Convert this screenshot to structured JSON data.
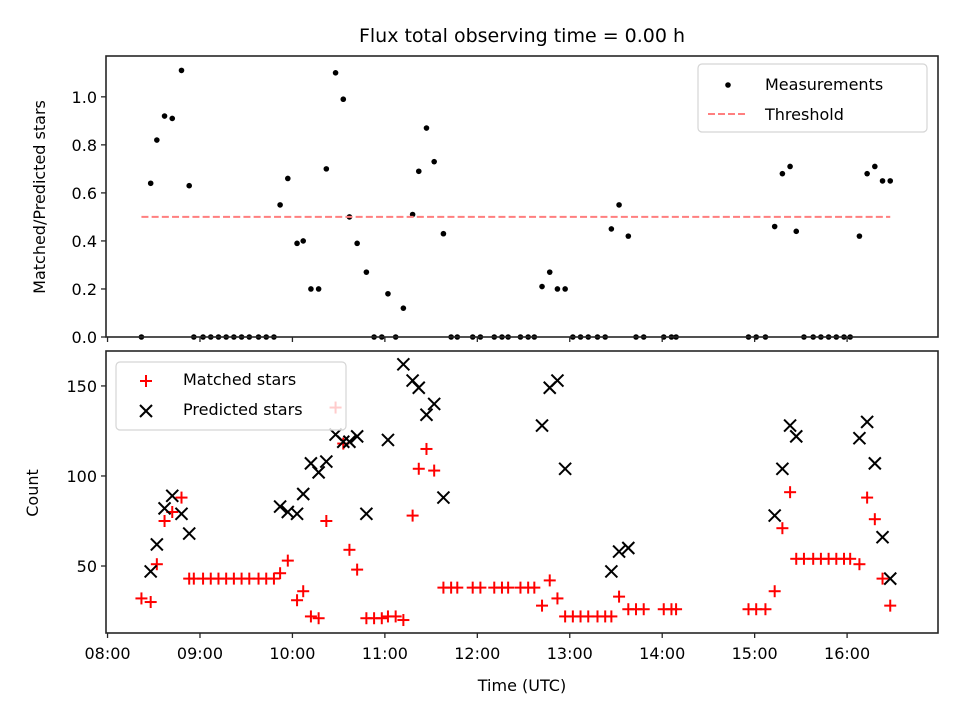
{
  "chart_data": [
    {
      "type": "scatter",
      "title": "Flux total observing time = 0.00 h",
      "xlabel": "",
      "ylabel": "Matched/Predicted stars",
      "xlim": [
        "07:59",
        "16:59"
      ],
      "ylim": [
        0.0,
        1.17
      ],
      "yticks": [
        0.0,
        0.2,
        0.4,
        0.6,
        0.8,
        1.0
      ],
      "ytick_labels": [
        "0.0",
        "0.2",
        "0.4",
        "0.6",
        "0.8",
        "1.0"
      ],
      "xticks": [
        "08:00",
        "09:00",
        "10:00",
        "11:00",
        "12:00",
        "13:00",
        "14:00",
        "15:00",
        "16:00"
      ],
      "grid": false,
      "legend": {
        "placement": "upper-right",
        "entries": [
          "Measurements",
          "Threshold"
        ]
      },
      "series": [
        {
          "name": "Measurements",
          "marker": "dot",
          "color": "#000000",
          "points": [
            [
              "08:22",
              0.0
            ],
            [
              "08:28",
              0.64
            ],
            [
              "08:32",
              0.82
            ],
            [
              "08:37",
              0.92
            ],
            [
              "08:42",
              0.91
            ],
            [
              "08:48",
              1.11
            ],
            [
              "08:53",
              0.63
            ],
            [
              "08:56",
              0.0
            ],
            [
              "09:02",
              0.0
            ],
            [
              "09:07",
              0.0
            ],
            [
              "09:12",
              0.0
            ],
            [
              "09:17",
              0.0
            ],
            [
              "09:22",
              0.0
            ],
            [
              "09:27",
              0.0
            ],
            [
              "09:32",
              0.0
            ],
            [
              "09:38",
              0.0
            ],
            [
              "09:43",
              0.0
            ],
            [
              "09:48",
              0.0
            ],
            [
              "09:52",
              0.55
            ],
            [
              "09:57",
              0.66
            ],
            [
              "10:03",
              0.39
            ],
            [
              "10:07",
              0.4
            ],
            [
              "10:12",
              0.2
            ],
            [
              "10:17",
              0.2
            ],
            [
              "10:22",
              0.7
            ],
            [
              "10:28",
              1.1
            ],
            [
              "10:33",
              0.99
            ],
            [
              "10:37",
              0.5
            ],
            [
              "10:42",
              0.39
            ],
            [
              "10:48",
              0.27
            ],
            [
              "10:53",
              0.0
            ],
            [
              "10:58",
              0.0
            ],
            [
              "11:02",
              0.18
            ],
            [
              "11:07",
              0.0
            ],
            [
              "11:12",
              0.12
            ],
            [
              "11:18",
              0.51
            ],
            [
              "11:22",
              0.69
            ],
            [
              "11:27",
              0.87
            ],
            [
              "11:32",
              0.73
            ],
            [
              "11:38",
              0.43
            ],
            [
              "11:43",
              0.0
            ],
            [
              "11:47",
              0.0
            ],
            [
              "11:57",
              0.0
            ],
            [
              "12:02",
              0.0
            ],
            [
              "12:11",
              0.0
            ],
            [
              "12:16",
              0.0
            ],
            [
              "12:20",
              0.0
            ],
            [
              "12:28",
              0.0
            ],
            [
              "12:33",
              0.0
            ],
            [
              "12:37",
              0.0
            ],
            [
              "12:42",
              0.21
            ],
            [
              "12:47",
              0.27
            ],
            [
              "12:52",
              0.2
            ],
            [
              "12:57",
              0.2
            ],
            [
              "13:02",
              0.0
            ],
            [
              "13:07",
              0.0
            ],
            [
              "13:12",
              0.0
            ],
            [
              "13:18",
              0.0
            ],
            [
              "13:23",
              0.0
            ],
            [
              "13:27",
              0.45
            ],
            [
              "13:32",
              0.55
            ],
            [
              "13:38",
              0.42
            ],
            [
              "13:43",
              0.0
            ],
            [
              "13:48",
              0.0
            ],
            [
              "14:01",
              0.0
            ],
            [
              "14:06",
              0.0
            ],
            [
              "14:09",
              0.0
            ],
            [
              "14:56",
              0.0
            ],
            [
              "15:01",
              0.0
            ],
            [
              "15:07",
              0.0
            ],
            [
              "15:13",
              0.46
            ],
            [
              "15:18",
              0.68
            ],
            [
              "15:23",
              0.71
            ],
            [
              "15:27",
              0.44
            ],
            [
              "15:32",
              0.0
            ],
            [
              "15:38",
              0.0
            ],
            [
              "15:43",
              0.0
            ],
            [
              "15:48",
              0.0
            ],
            [
              "15:53",
              0.0
            ],
            [
              "15:58",
              0.0
            ],
            [
              "16:02",
              0.0
            ],
            [
              "16:08",
              0.42
            ],
            [
              "16:13",
              0.68
            ],
            [
              "16:18",
              0.71
            ],
            [
              "16:23",
              0.65
            ],
            [
              "16:28",
              0.65
            ]
          ]
        },
        {
          "name": "Threshold",
          "marker": "dashed-line",
          "color": "#ff7f7f",
          "points": [
            [
              "08:22",
              0.5
            ],
            [
              "16:28",
              0.5
            ]
          ]
        }
      ]
    },
    {
      "type": "scatter",
      "title": "",
      "xlabel": "Time (UTC)",
      "ylabel": "Count",
      "xlim": [
        "07:59",
        "16:59"
      ],
      "ylim": [
        12.8,
        169.4
      ],
      "yticks": [
        50,
        100,
        150
      ],
      "ytick_labels": [
        "50",
        "100",
        "150"
      ],
      "xticks": [
        "08:00",
        "09:00",
        "10:00",
        "11:00",
        "12:00",
        "13:00",
        "14:00",
        "15:00",
        "16:00"
      ],
      "xtick_labels": [
        "08:00",
        "09:00",
        "10:00",
        "11:00",
        "12:00",
        "13:00",
        "14:00",
        "15:00",
        "16:00"
      ],
      "grid": false,
      "legend": {
        "placement": "upper-left",
        "entries": [
          "Matched stars",
          "Predicted stars"
        ]
      },
      "series": [
        {
          "name": "Matched stars",
          "marker": "plus",
          "color": "#ff0000",
          "points": [
            [
              "08:22",
              32
            ],
            [
              "08:28",
              30
            ],
            [
              "08:32",
              51
            ],
            [
              "08:37",
              75
            ],
            [
              "08:42",
              80
            ],
            [
              "08:48",
              88
            ],
            [
              "08:53",
              43
            ],
            [
              "08:56",
              43
            ],
            [
              "09:02",
              43
            ],
            [
              "09:07",
              43
            ],
            [
              "09:12",
              43
            ],
            [
              "09:17",
              43
            ],
            [
              "09:22",
              43
            ],
            [
              "09:27",
              43
            ],
            [
              "09:32",
              43
            ],
            [
              "09:38",
              43
            ],
            [
              "09:43",
              43
            ],
            [
              "09:48",
              43
            ],
            [
              "09:52",
              46
            ],
            [
              "09:57",
              53
            ],
            [
              "10:03",
              31
            ],
            [
              "10:07",
              36
            ],
            [
              "10:12",
              22
            ],
            [
              "10:17",
              21
            ],
            [
              "10:22",
              75
            ],
            [
              "10:28",
              138
            ],
            [
              "10:33",
              118
            ],
            [
              "10:37",
              59
            ],
            [
              "10:42",
              48
            ],
            [
              "10:48",
              21
            ],
            [
              "10:53",
              21
            ],
            [
              "10:58",
              21
            ],
            [
              "11:02",
              22
            ],
            [
              "11:07",
              22
            ],
            [
              "11:12",
              20
            ],
            [
              "11:18",
              78
            ],
            [
              "11:22",
              104
            ],
            [
              "11:27",
              115
            ],
            [
              "11:32",
              103
            ],
            [
              "11:38",
              38
            ],
            [
              "11:43",
              38
            ],
            [
              "11:47",
              38
            ],
            [
              "11:57",
              38
            ],
            [
              "12:02",
              38
            ],
            [
              "12:11",
              38
            ],
            [
              "12:16",
              38
            ],
            [
              "12:20",
              38
            ],
            [
              "12:28",
              38
            ],
            [
              "12:33",
              38
            ],
            [
              "12:37",
              38
            ],
            [
              "12:42",
              28
            ],
            [
              "12:47",
              42
            ],
            [
              "12:52",
              32
            ],
            [
              "12:57",
              22
            ],
            [
              "13:02",
              22
            ],
            [
              "13:07",
              22
            ],
            [
              "13:12",
              22
            ],
            [
              "13:18",
              22
            ],
            [
              "13:23",
              22
            ],
            [
              "13:27",
              22
            ],
            [
              "13:32",
              33
            ],
            [
              "13:38",
              26
            ],
            [
              "13:43",
              26
            ],
            [
              "13:48",
              26
            ],
            [
              "14:01",
              26
            ],
            [
              "14:06",
              26
            ],
            [
              "14:09",
              26
            ],
            [
              "14:56",
              26
            ],
            [
              "15:01",
              26
            ],
            [
              "15:07",
              26
            ],
            [
              "15:13",
              36
            ],
            [
              "15:18",
              71
            ],
            [
              "15:23",
              91
            ],
            [
              "15:27",
              54
            ],
            [
              "15:32",
              54
            ],
            [
              "15:38",
              54
            ],
            [
              "15:43",
              54
            ],
            [
              "15:48",
              54
            ],
            [
              "15:53",
              54
            ],
            [
              "15:58",
              54
            ],
            [
              "16:02",
              54
            ],
            [
              "16:08",
              51
            ],
            [
              "16:13",
              88
            ],
            [
              "16:18",
              76
            ],
            [
              "16:23",
              43
            ],
            [
              "16:28",
              28
            ]
          ]
        },
        {
          "name": "Predicted stars",
          "marker": "x",
          "color": "#000000",
          "points": [
            [
              "08:28",
              47
            ],
            [
              "08:32",
              62
            ],
            [
              "08:37",
              82
            ],
            [
              "08:42",
              89
            ],
            [
              "08:48",
              79
            ],
            [
              "08:53",
              68
            ],
            [
              "09:52",
              83
            ],
            [
              "09:57",
              80
            ],
            [
              "10:03",
              79
            ],
            [
              "10:07",
              90
            ],
            [
              "10:12",
              107
            ],
            [
              "10:17",
              102
            ],
            [
              "10:22",
              108
            ],
            [
              "10:28",
              123
            ],
            [
              "10:33",
              119
            ],
            [
              "10:37",
              119
            ],
            [
              "10:42",
              122
            ],
            [
              "10:48",
              79
            ],
            [
              "11:02",
              120
            ],
            [
              "11:12",
              162
            ],
            [
              "11:18",
              153
            ],
            [
              "11:22",
              149
            ],
            [
              "11:27",
              134
            ],
            [
              "11:32",
              140
            ],
            [
              "11:38",
              88
            ],
            [
              "12:42",
              128
            ],
            [
              "12:47",
              149
            ],
            [
              "12:52",
              153
            ],
            [
              "12:57",
              104
            ],
            [
              "13:27",
              47
            ],
            [
              "13:32",
              58
            ],
            [
              "13:38",
              60
            ],
            [
              "15:13",
              78
            ],
            [
              "15:18",
              104
            ],
            [
              "15:23",
              128
            ],
            [
              "15:27",
              122
            ],
            [
              "16:08",
              121
            ],
            [
              "16:13",
              130
            ],
            [
              "16:18",
              107
            ],
            [
              "16:23",
              66
            ],
            [
              "16:28",
              43
            ]
          ]
        }
      ]
    }
  ]
}
